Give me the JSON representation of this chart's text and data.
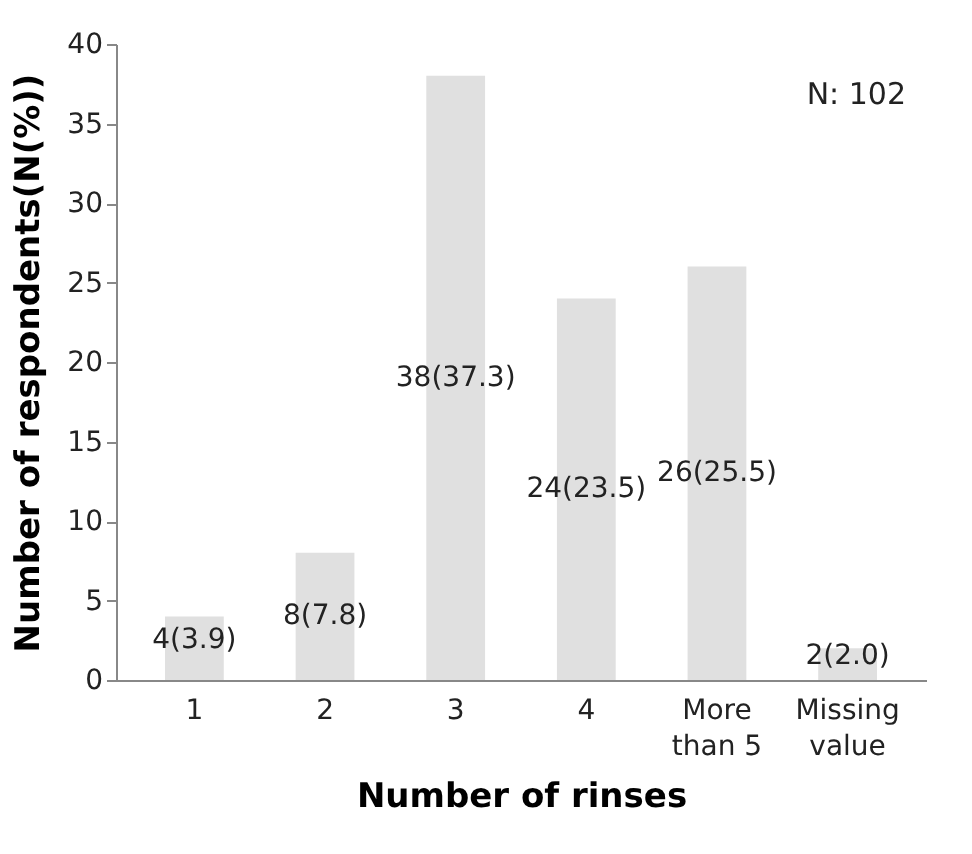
{
  "chart_data": {
    "type": "bar",
    "xlabel": "Number of rinses",
    "ylabel": "Number of respondents(N(%))",
    "categories": [
      "1",
      "2",
      "3",
      "4",
      "More than 5",
      "Missing value"
    ],
    "values": [
      4,
      8,
      38,
      24,
      26,
      2
    ],
    "value_labels": [
      "4(3.9)",
      "8(7.8)",
      "38(37.3)",
      "24(23.5)",
      "26(25.5)",
      "2(2.0)"
    ],
    "color": "#e0e0e0",
    "ylim": [
      0,
      40
    ],
    "yticks": [
      0,
      5,
      10,
      15,
      20,
      25,
      30,
      35,
      40
    ],
    "grid": false,
    "annotations": [
      "N: 102"
    ]
  }
}
